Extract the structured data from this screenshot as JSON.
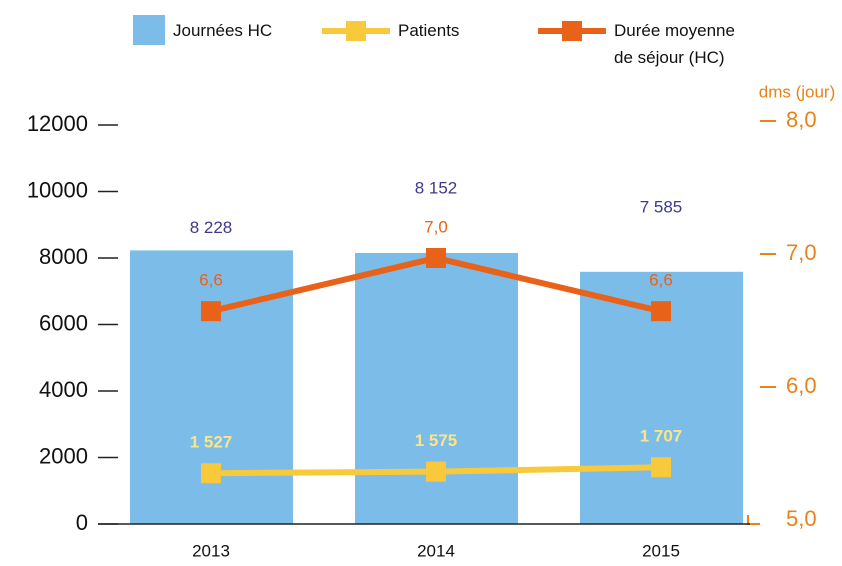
{
  "chart_data": {
    "type": "bar",
    "categories": [
      "2013",
      "2014",
      "2015"
    ],
    "series": [
      {
        "name": "Journées HC",
        "type": "bar",
        "color": "#7bbde8",
        "values": [
          8228,
          8152,
          7585
        ],
        "value_labels": [
          "8 228",
          "8 152",
          "7 585"
        ],
        "label_color": "#3d3a8a"
      },
      {
        "name": "Patients",
        "type": "line",
        "color": "#f9c93c",
        "values": [
          1527,
          1575,
          1707
        ],
        "value_labels": [
          "1 527",
          "1 575",
          "1 707"
        ],
        "label_color": "#fbe58a"
      },
      {
        "name": "Durée moyenne de séjour (HC)",
        "type": "line",
        "axis": "y2",
        "color": "#e8621a",
        "values": [
          6.6,
          7.0,
          6.6
        ],
        "value_labels": [
          "6,6",
          "7,0",
          "6,6"
        ],
        "label_color": "#e8621a"
      }
    ],
    "ylim": [
      0,
      12000
    ],
    "yticks": [
      0,
      2000,
      4000,
      6000,
      8000,
      10000,
      12000
    ],
    "y2lim": [
      5,
      8
    ],
    "y2ticks": [
      {
        "value": 5,
        "label": "5,0"
      },
      {
        "value": 6,
        "label": "6,0"
      },
      {
        "value": 7,
        "label": "7,0"
      },
      {
        "value": 8,
        "label": "8,0"
      }
    ],
    "y2_label": "dms (jour)"
  }
}
